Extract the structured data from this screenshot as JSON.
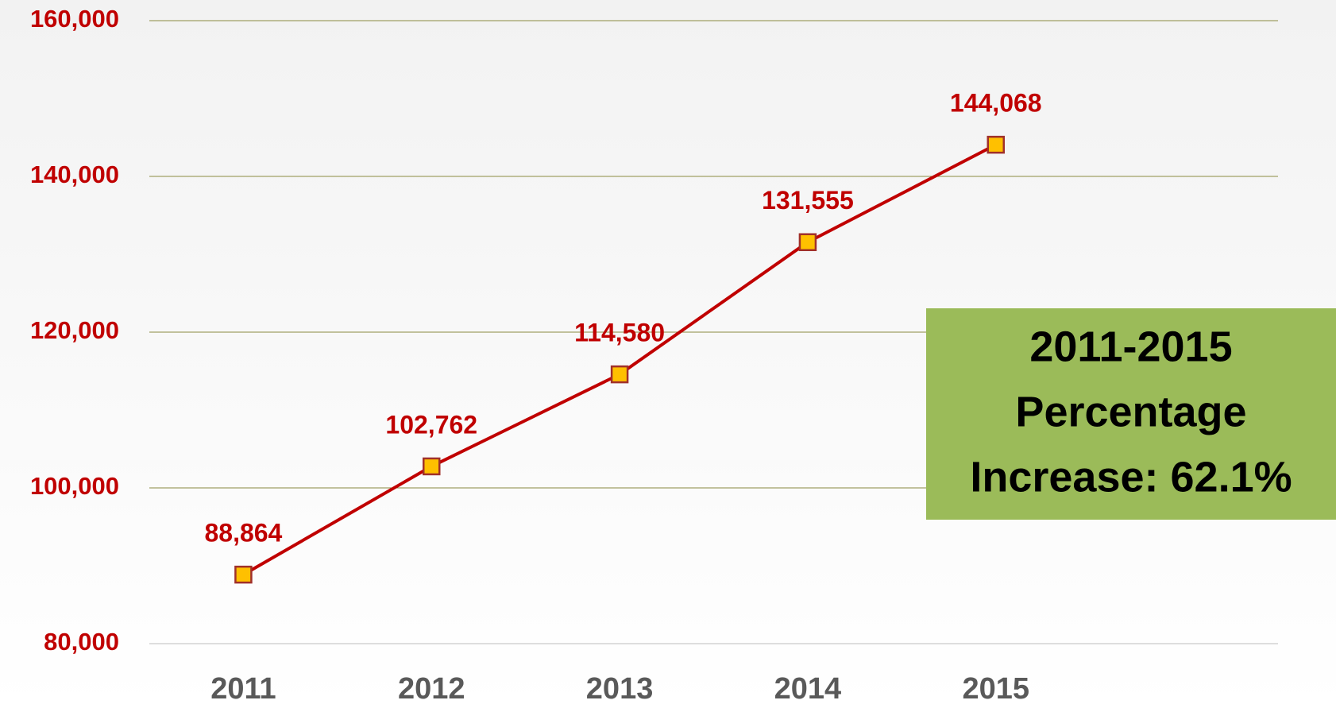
{
  "chart_data": {
    "type": "line",
    "categories": [
      "2011",
      "2012",
      "2013",
      "2014",
      "2015"
    ],
    "series": [
      {
        "color": "#c00000",
        "marker_color": "#ffc000",
        "values": [
          88864,
          102762,
          114580,
          131555,
          144068
        ],
        "value_labels": [
          "88,864",
          "102,762",
          "114,580",
          "131,555",
          "144,068"
        ]
      }
    ],
    "ylim": [
      80000,
      160000
    ],
    "yticks": [
      {
        "value": 80000,
        "label": "80,000"
      },
      {
        "value": 100000,
        "label": "100,000"
      },
      {
        "value": 120000,
        "label": "120,000"
      },
      {
        "value": 140000,
        "label": "140,000"
      },
      {
        "value": 160000,
        "label": "160,000"
      }
    ],
    "grid": true,
    "annotation": {
      "lines": [
        "2011-2015",
        "Percentage",
        "Increase: 62.1%"
      ],
      "color": "#9bbb59"
    }
  }
}
